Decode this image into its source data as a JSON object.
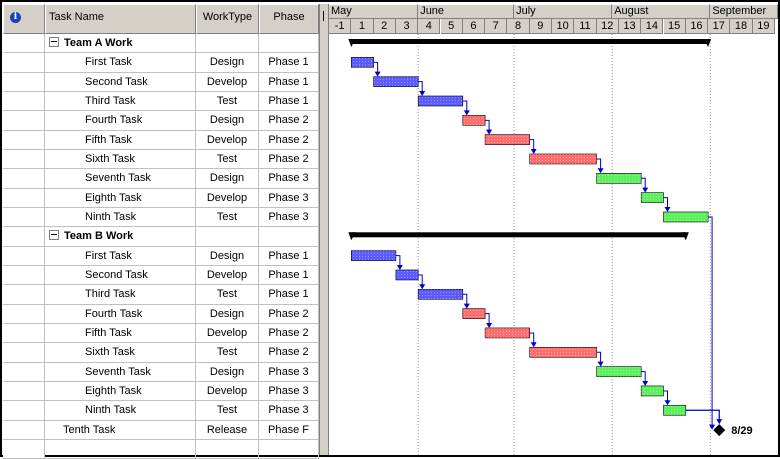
{
  "columns": {
    "indicator_icon": "info-icon",
    "task_name": "Task Name",
    "work_type": "WorkType",
    "phase": "Phase"
  },
  "timescale": {
    "months": [
      {
        "label": "May",
        "start": -1,
        "end": 3
      },
      {
        "label": "June",
        "start": 3,
        "end": 7.3
      },
      {
        "label": "July",
        "start": 7.3,
        "end": 11.7
      },
      {
        "label": "August",
        "start": 11.7,
        "end": 16.1
      },
      {
        "label": "September",
        "start": 16.1,
        "end": 19.5
      }
    ],
    "weeks": [
      "-1",
      "1",
      "2",
      "3",
      "4",
      "5",
      "6",
      "7",
      "8",
      "9",
      "10",
      "11",
      "12",
      "13",
      "14",
      "15",
      "16",
      "17",
      "18",
      "19"
    ]
  },
  "phase_colors": {
    "Phase 1": "#5b5bff",
    "Phase 2": "#ff6e6e",
    "Phase 3": "#5cf05c",
    "summary": "#000000",
    "link": "#0000cc"
  },
  "rows": [
    {
      "type": "summary",
      "name": "Team A Work",
      "worktype": "",
      "phase": "",
      "start": 0,
      "end": 16
    },
    {
      "type": "task",
      "name": "First Task",
      "worktype": "Design",
      "phase": "Phase 1",
      "start": 0,
      "end": 1
    },
    {
      "type": "task",
      "name": "Second Task",
      "worktype": "Develop",
      "phase": "Phase 1",
      "start": 1,
      "end": 3
    },
    {
      "type": "task",
      "name": "Third Task",
      "worktype": "Test",
      "phase": "Phase 1",
      "start": 3,
      "end": 5
    },
    {
      "type": "task",
      "name": "Fourth Task",
      "worktype": "Design",
      "phase": "Phase 2",
      "start": 5,
      "end": 6
    },
    {
      "type": "task",
      "name": "Fifth Task",
      "worktype": "Develop",
      "phase": "Phase 2",
      "start": 6,
      "end": 8
    },
    {
      "type": "task",
      "name": "Sixth Task",
      "worktype": "Test",
      "phase": "Phase 2",
      "start": 8,
      "end": 11
    },
    {
      "type": "task",
      "name": "Seventh Task",
      "worktype": "Design",
      "phase": "Phase 3",
      "start": 11,
      "end": 13
    },
    {
      "type": "task",
      "name": "Eighth Task",
      "worktype": "Develop",
      "phase": "Phase 3",
      "start": 13,
      "end": 14
    },
    {
      "type": "task",
      "name": "Ninth Task",
      "worktype": "Test",
      "phase": "Phase 3",
      "start": 14,
      "end": 16
    },
    {
      "type": "summary",
      "name": "Team B Work",
      "worktype": "",
      "phase": "",
      "start": 0,
      "end": 15
    },
    {
      "type": "task",
      "name": "First Task",
      "worktype": "Design",
      "phase": "Phase 1",
      "start": 0,
      "end": 2
    },
    {
      "type": "task",
      "name": "Second Task",
      "worktype": "Develop",
      "phase": "Phase 1",
      "start": 2,
      "end": 3
    },
    {
      "type": "task",
      "name": "Third Task",
      "worktype": "Test",
      "phase": "Phase 1",
      "start": 3,
      "end": 5
    },
    {
      "type": "task",
      "name": "Fourth Task",
      "worktype": "Design",
      "phase": "Phase 2",
      "start": 5,
      "end": 6
    },
    {
      "type": "task",
      "name": "Fifth Task",
      "worktype": "Develop",
      "phase": "Phase 2",
      "start": 6,
      "end": 8
    },
    {
      "type": "task",
      "name": "Sixth Task",
      "worktype": "Test",
      "phase": "Phase 2",
      "start": 8,
      "end": 11
    },
    {
      "type": "task",
      "name": "Seventh Task",
      "worktype": "Design",
      "phase": "Phase 3",
      "start": 11,
      "end": 13
    },
    {
      "type": "task",
      "name": "Eighth Task",
      "worktype": "Develop",
      "phase": "Phase 3",
      "start": 13,
      "end": 14
    },
    {
      "type": "task",
      "name": "Ninth Task",
      "worktype": "Test",
      "phase": "Phase 3",
      "start": 14,
      "end": 15
    },
    {
      "type": "milestone",
      "name": "Tenth Task",
      "worktype": "Release",
      "phase": "Phase F",
      "start": 16.5,
      "end": 16.5,
      "label": "8/29"
    },
    {
      "type": "blank",
      "name": "",
      "worktype": "",
      "phase": "",
      "start": null,
      "end": null
    }
  ]
}
